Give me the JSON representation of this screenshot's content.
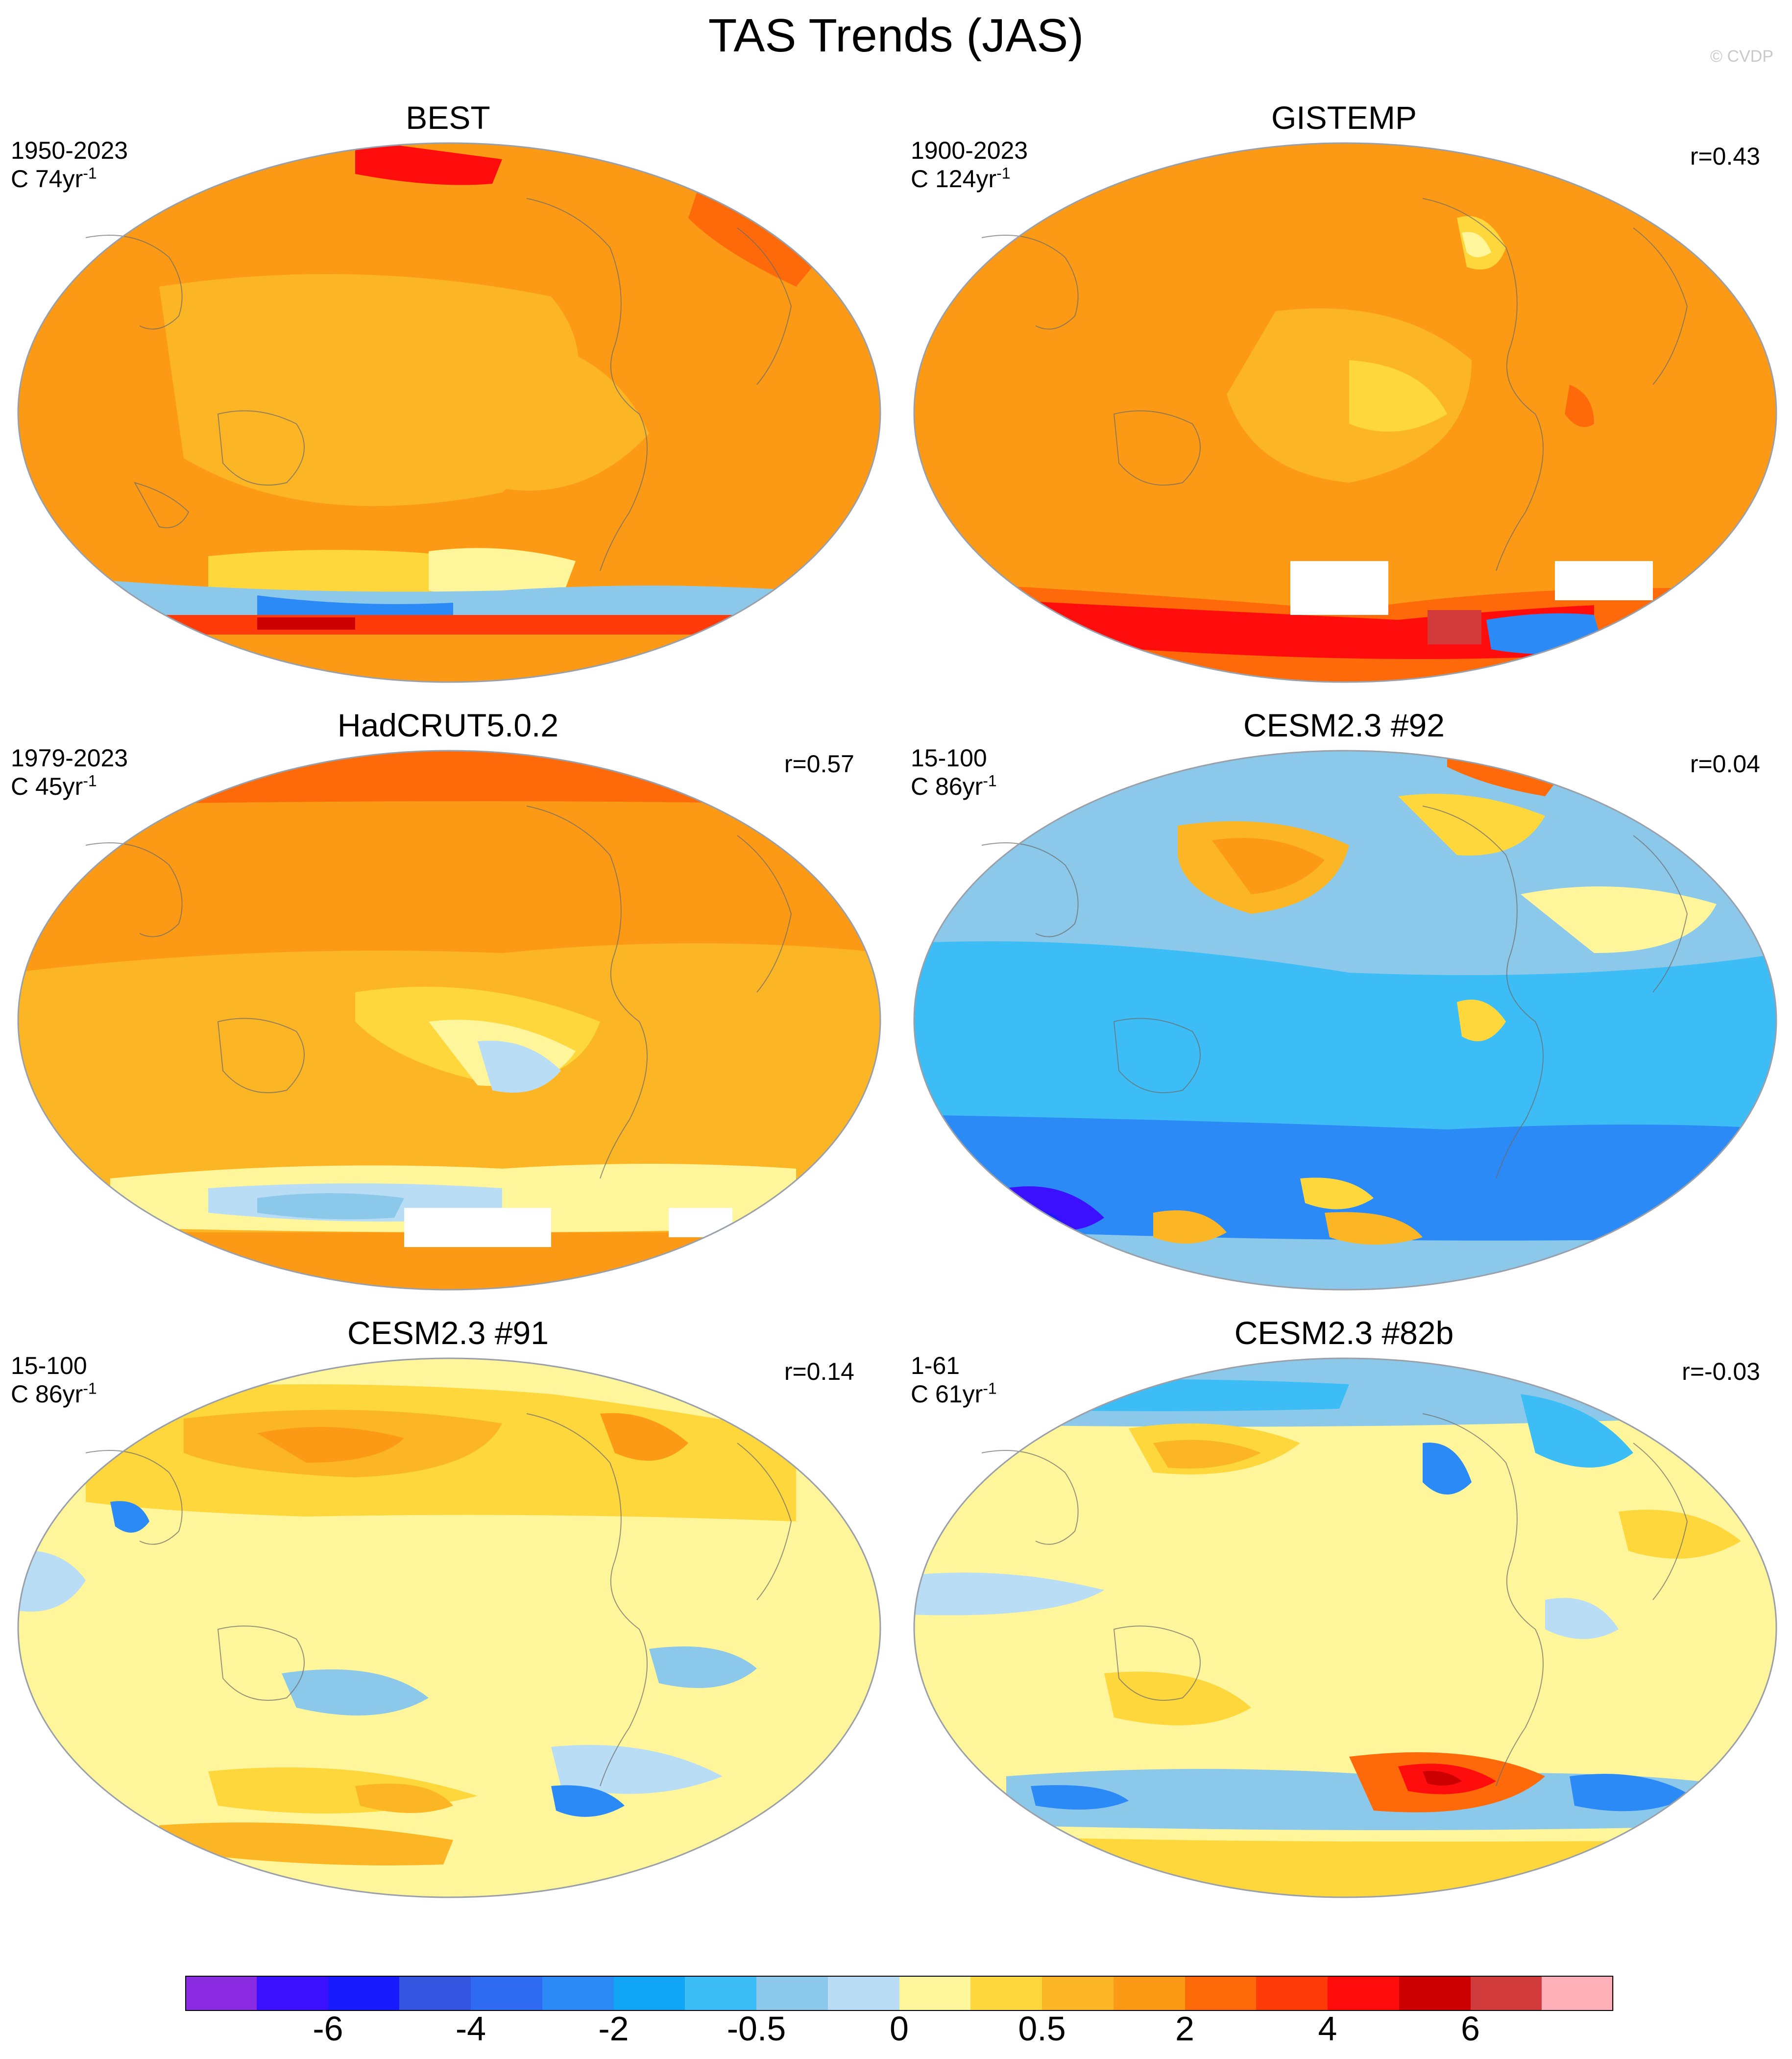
{
  "figure": {
    "title": "TAS Trends (JAS)",
    "credit": "© CVDP"
  },
  "chart_data": [
    {
      "type": "heatmap",
      "title": "BEST",
      "period": "1950-2023",
      "trend_unit_prefix": "C 74yr",
      "trend_unit_exp": "-1",
      "correlation": "",
      "dominant_range": "0.5 to 2",
      "anomaly_notes": [
        "strong warming band near 60S",
        "cooling patches Southern Ocean"
      ]
    },
    {
      "type": "heatmap",
      "title": "GISTEMP",
      "period": "1900-2023",
      "trend_unit_prefix": "C 124yr",
      "trend_unit_exp": "-1",
      "correlation": "r=0.43",
      "dominant_range": "1 to 2",
      "anomaly_notes": [
        "strong warming over Antarctica",
        "missing data (white) near Antarctic coast"
      ]
    },
    {
      "type": "heatmap",
      "title": "HadCRUT5.0.2",
      "period": "1979-2023",
      "trend_unit_prefix": "C 45yr",
      "trend_unit_exp": "-1",
      "correlation": "r=0.57",
      "dominant_range": "0.5 to 2",
      "anomaly_notes": [
        "missing data (white) over Antarctica"
      ]
    },
    {
      "type": "heatmap",
      "title": "CESM2.3 #92",
      "period": "15-100",
      "trend_unit_prefix": "C 86yr",
      "trend_unit_exp": "-1",
      "correlation": "r=0.04",
      "dominant_range": "-2 to 0",
      "anomaly_notes": [
        "cooling dominant",
        "warming over North Pacific"
      ]
    },
    {
      "type": "heatmap",
      "title": "CESM2.3 #91",
      "period": "15-100",
      "trend_unit_prefix": "C 86yr",
      "trend_unit_exp": "-1",
      "correlation": "r=0.14",
      "dominant_range": "0 to 1",
      "anomaly_notes": [
        "warming over Northern Hemisphere"
      ]
    },
    {
      "type": "heatmap",
      "title": "CESM2.3 #82b",
      "period": "1-61",
      "trend_unit_prefix": "C 61yr",
      "trend_unit_exp": "-1",
      "correlation": "r=-0.03",
      "dominant_range": "-0.5 to 0.5",
      "anomaly_notes": [
        "strong warming patch in South Atlantic sector"
      ]
    }
  ],
  "colorbar": {
    "colors": [
      "#8a2be2",
      "#3b10ff",
      "#1a1aff",
      "#3355e0",
      "#2f6bf0",
      "#2b8af5",
      "#10a6f5",
      "#3dbdf5",
      "#8cc8ea",
      "#b8ddf5",
      "#fff59a",
      "#fdd73c",
      "#fcb625",
      "#fd9a15",
      "#fe6a0a",
      "#ff3b0a",
      "#ff0d0d",
      "#cc0000",
      "#d23b3b",
      "#ffb0b8"
    ],
    "labels": [
      "-6",
      "-4",
      "-2",
      "-0.5",
      "0",
      "0.5",
      "2",
      "4",
      "6"
    ]
  }
}
